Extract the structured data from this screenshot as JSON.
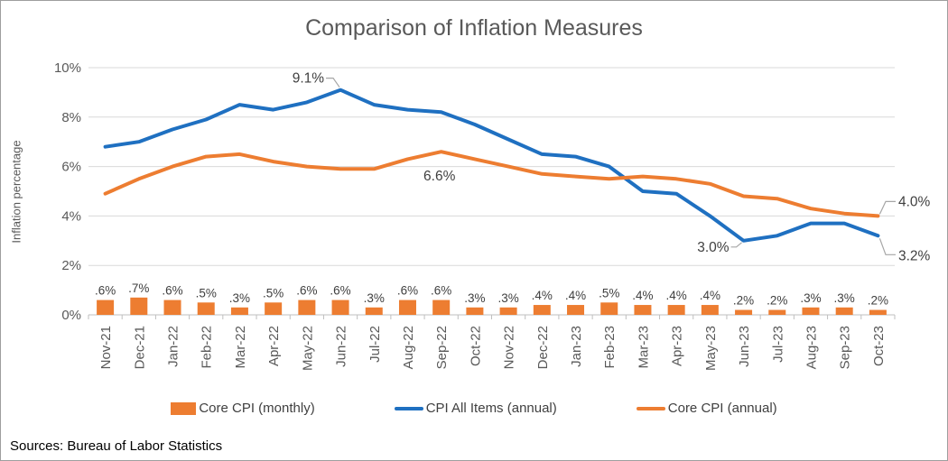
{
  "chart": {
    "title": "Comparison of Inflation Measures",
    "ylabel": "Inflation percentage",
    "source": "Sources: Bureau of Labor Statistics"
  },
  "chart_data": {
    "type": "combo (bar + line)",
    "categories": [
      "Nov-21",
      "Dec-21",
      "Jan-22",
      "Feb-22",
      "Mar-22",
      "Apr-22",
      "May-22",
      "Jun-22",
      "Jul-22",
      "Aug-22",
      "Sep-22",
      "Oct-22",
      "Nov-22",
      "Dec-22",
      "Jan-23",
      "Feb-23",
      "Mar-23",
      "Apr-23",
      "May-23",
      "Jun-23",
      "Jul-23",
      "Aug-23",
      "Sep-23",
      "Oct-23"
    ],
    "series": [
      {
        "name": "Core CPI (monthly)",
        "type": "bar",
        "color": "#ED7D31",
        "values": [
          0.6,
          0.7,
          0.6,
          0.5,
          0.3,
          0.5,
          0.6,
          0.6,
          0.3,
          0.6,
          0.6,
          0.3,
          0.3,
          0.4,
          0.4,
          0.5,
          0.4,
          0.4,
          0.4,
          0.2,
          0.2,
          0.3,
          0.3,
          0.2
        ],
        "data_labels": [
          ".6%",
          ".7%",
          ".6%",
          ".5%",
          ".3%",
          ".5%",
          ".6%",
          ".6%",
          ".3%",
          ".6%",
          ".6%",
          ".3%",
          ".3%",
          ".4%",
          ".4%",
          ".5%",
          ".4%",
          ".4%",
          ".4%",
          ".2%",
          ".2%",
          ".3%",
          ".3%",
          ".2%"
        ]
      },
      {
        "name": "CPI All Items (annual)",
        "type": "line",
        "color": "#1F70C1",
        "values": [
          6.8,
          7.0,
          7.5,
          7.9,
          8.5,
          8.3,
          8.6,
          9.1,
          8.5,
          8.3,
          8.2,
          7.7,
          7.1,
          6.5,
          6.4,
          6.0,
          5.0,
          4.9,
          4.0,
          3.0,
          3.2,
          3.7,
          3.7,
          3.2
        ]
      },
      {
        "name": "Core CPI (annual)",
        "type": "line",
        "color": "#ED7D31",
        "values": [
          4.9,
          5.5,
          6.0,
          6.4,
          6.5,
          6.2,
          6.0,
          5.9,
          5.9,
          6.3,
          6.6,
          6.3,
          6.0,
          5.7,
          5.6,
          5.5,
          5.6,
          5.5,
          5.3,
          4.8,
          4.7,
          4.3,
          4.1,
          4.0
        ]
      }
    ],
    "title": "Comparison of Inflation Measures",
    "xlabel": "",
    "ylabel": "Inflation percentage",
    "ylim": [
      0,
      10
    ],
    "yticks": [
      0,
      2,
      4,
      6,
      8,
      10
    ],
    "ytick_labels": [
      "0%",
      "2%",
      "4%",
      "6%",
      "8%",
      "10%"
    ],
    "grid": "horizontal",
    "legend_position": "bottom",
    "annotations": [
      {
        "text": "9.1%",
        "series": "CPI All Items (annual)",
        "category": "Jun-22",
        "value": 9.1,
        "placement": "above-left",
        "leader": true
      },
      {
        "text": "6.6%",
        "series": "Core CPI (annual)",
        "category": "Sep-22",
        "value": 6.6,
        "placement": "below",
        "leader": false
      },
      {
        "text": "3.0%",
        "series": "CPI All Items (annual)",
        "category": "Jun-23",
        "value": 3.0,
        "placement": "left",
        "leader": true
      },
      {
        "text": "4.0%",
        "series": "Core CPI (annual)",
        "category": "Oct-23",
        "value": 4.0,
        "placement": "right-high",
        "leader": true
      },
      {
        "text": "3.2%",
        "series": "CPI All Items (annual)",
        "category": "Oct-23",
        "value": 3.2,
        "placement": "right-low",
        "leader": true
      }
    ]
  },
  "colors": {
    "bar_orange": "#ED7D31",
    "line_blue": "#1F70C1",
    "line_orange": "#ED7D31",
    "title_text": "#595959",
    "axis_text": "#595959",
    "bar_label_text": "#3F3F3F",
    "gridline": "#D9D9D9",
    "axis_line": "#BFBFBF",
    "leader_line": "#A6A6A6",
    "frame_border": "#9E9E9E",
    "background": "#FFFFFF"
  }
}
